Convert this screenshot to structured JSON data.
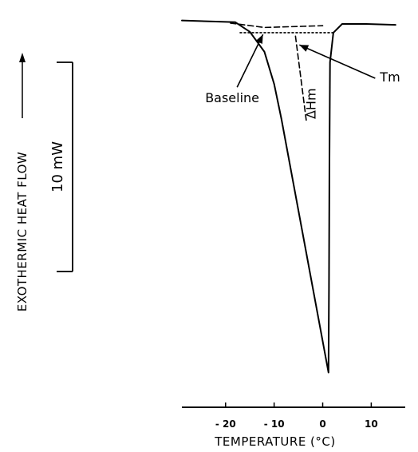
{
  "chart_data": {
    "type": "line",
    "xlabel": "TEMPERATURE (°C)",
    "ylabel": "EXOTHERMIC HEAT FLOW",
    "x_ticks": [
      -20,
      -10,
      0,
      10
    ],
    "x_tick_labels": [
      "- 20",
      "- 10",
      "0",
      "10"
    ],
    "xlim": [
      -29,
      17
    ],
    "ylim": [
      -41.2,
      1.5
    ],
    "scale_bar": {
      "label": "10 mW",
      "from": -28.0,
      "to": -4.0
    },
    "series": [
      {
        "style": "solid",
        "points": [
          [
            -29,
            0.8
          ],
          [
            -18,
            0.6
          ],
          [
            -15,
            -0.5
          ],
          [
            -12,
            -2.8
          ],
          [
            -10,
            -6.5
          ],
          [
            -8.5,
            -10.5
          ],
          [
            1.2,
            -39.6
          ],
          [
            1.3,
            -30
          ],
          [
            1.4,
            -15
          ],
          [
            1.5,
            -4
          ],
          [
            2.2,
            -0.6
          ],
          [
            4,
            0.4
          ],
          [
            9,
            0.4
          ],
          [
            15,
            0.3
          ]
        ]
      },
      {
        "style": "dashed",
        "points": [
          [
            -19,
            0.5
          ],
          [
            -12,
            0
          ],
          [
            0,
            0.2
          ]
        ]
      },
      {
        "style": "dashed",
        "points": [
          [
            -5.6,
            -1.0
          ],
          [
            -3.3,
            -11
          ]
        ]
      },
      {
        "style": "dotted",
        "points": [
          [
            -17,
            -0.6
          ],
          [
            2.4,
            -0.6
          ]
        ]
      }
    ],
    "annotations": [
      {
        "text": "Baseline",
        "at": [
          -24.2,
          -8.6
        ],
        "arrow_to": [
          -12.3,
          -0.8
        ]
      },
      {
        "text": "Tm",
        "at": [
          11.8,
          -6.2
        ],
        "arrow_to": [
          -4.8,
          -2.0
        ]
      },
      {
        "text": "ΔHm",
        "at": [
          -1.5,
          -10.5
        ],
        "rotate": -90
      }
    ]
  }
}
